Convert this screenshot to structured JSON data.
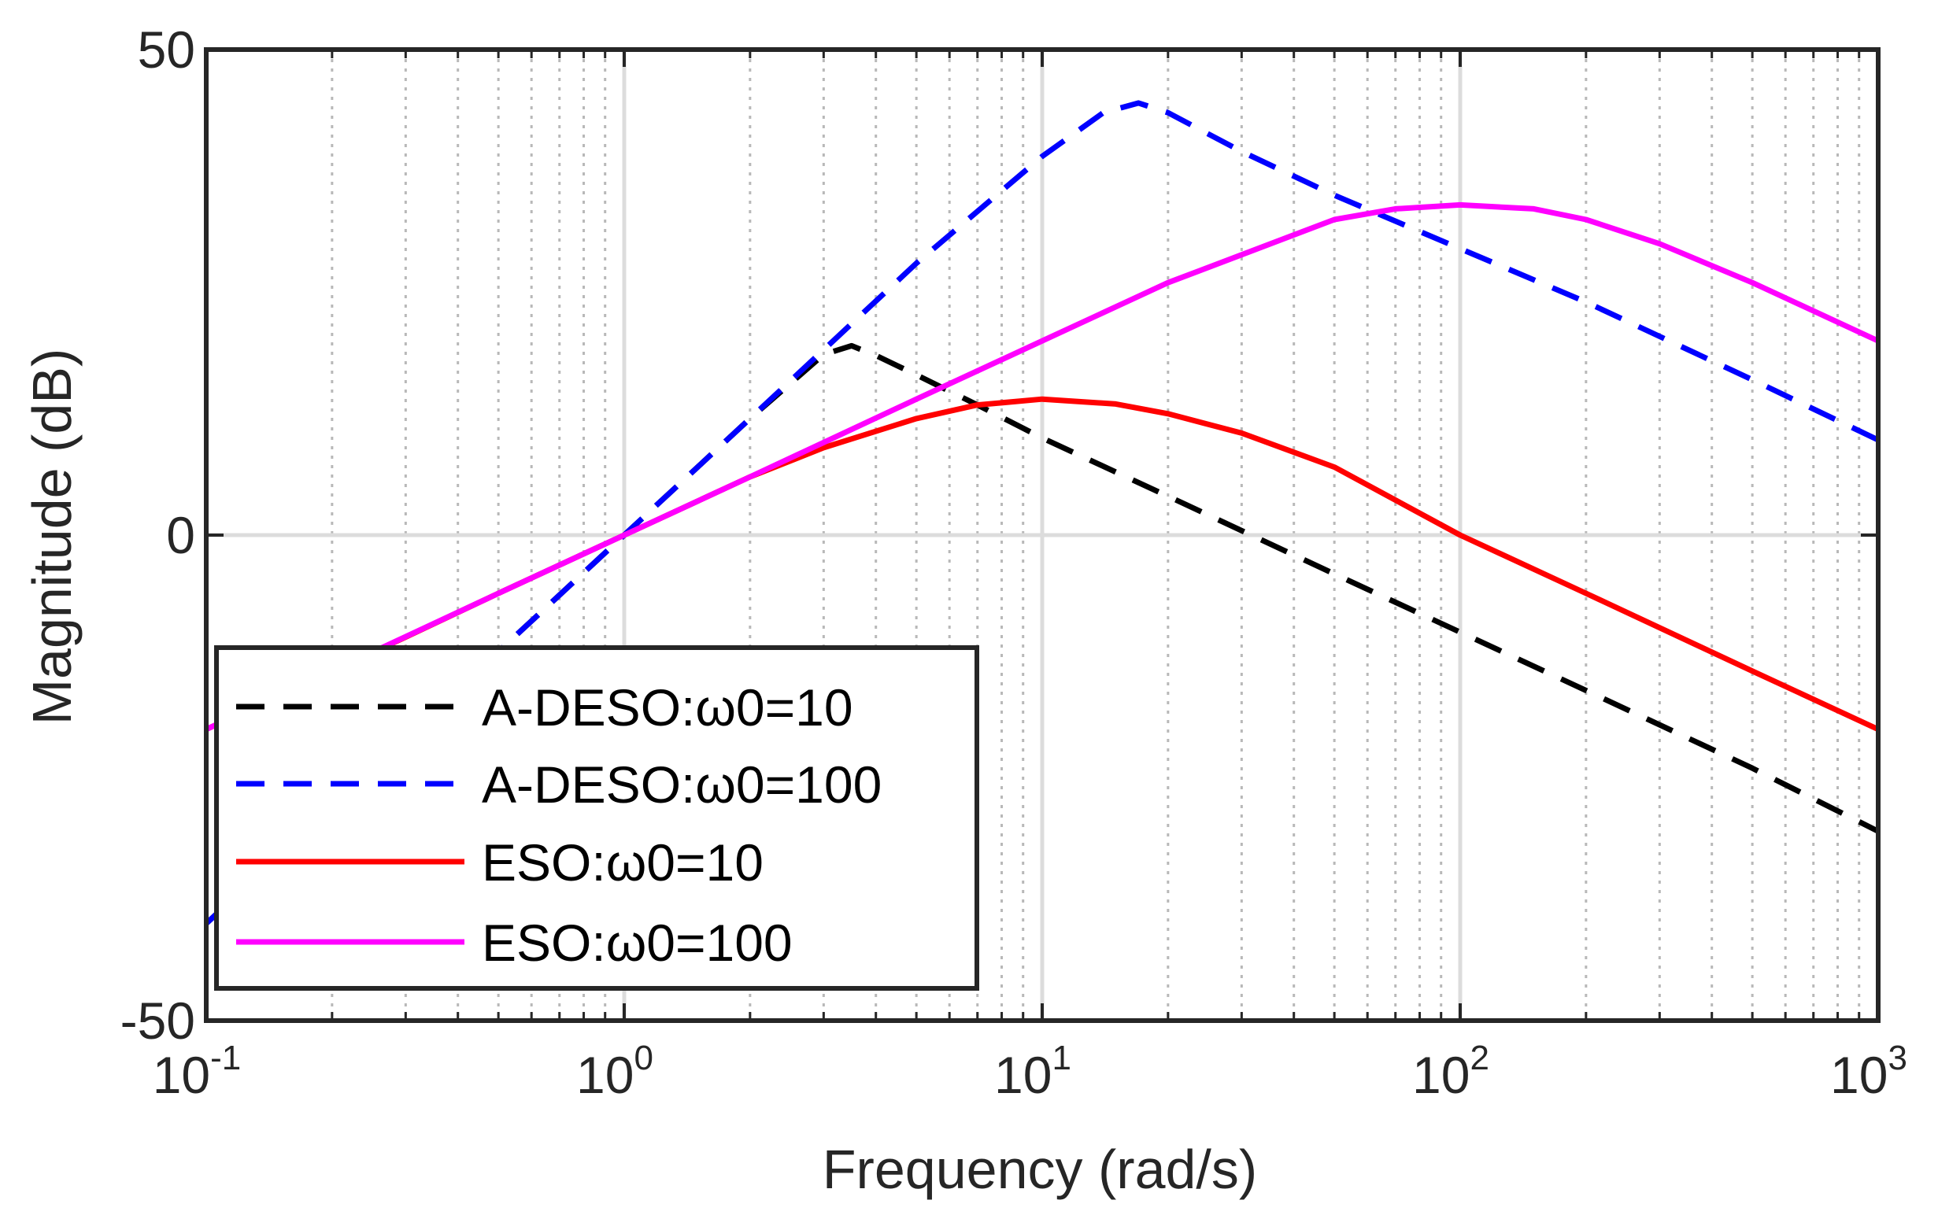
{
  "chart_data": {
    "type": "line",
    "title": "",
    "xlabel": "Frequency (rad/s)",
    "ylabel": "Magnitude (dB)",
    "xscale": "log",
    "xlim": [
      0.1,
      1000
    ],
    "ylim": [
      -50,
      50
    ],
    "grid": true,
    "minor_grid": true,
    "legend_position": "bottom-left",
    "xticks": [
      {
        "value": 0.1,
        "base": "10",
        "exp": "-1"
      },
      {
        "value": 1,
        "base": "10",
        "exp": "0"
      },
      {
        "value": 10,
        "base": "10",
        "exp": "1"
      },
      {
        "value": 100,
        "base": "10",
        "exp": "2"
      },
      {
        "value": 1000,
        "base": "10",
        "exp": "3"
      }
    ],
    "yticks": [
      {
        "value": -50,
        "label": "-50"
      },
      {
        "value": 0,
        "label": "0"
      },
      {
        "value": 50,
        "label": "50"
      }
    ],
    "series": [
      {
        "name": "A-DESO:ω0=10",
        "color": "#000000",
        "dash": "dashed",
        "x": [
          0.1,
          0.2,
          0.5,
          1,
          2,
          3,
          3.5,
          4,
          5,
          7,
          10,
          20,
          50,
          100,
          200,
          500,
          1000
        ],
        "y": [
          -40,
          -28,
          -12,
          0,
          12,
          18.6,
          19.5,
          18.5,
          16.5,
          13.4,
          10,
          4,
          -4,
          -10,
          -16,
          -24,
          -30.5
        ]
      },
      {
        "name": "A-DESO:ω0=100",
        "color": "#0000ff",
        "dash": "dashed",
        "x": [
          0.1,
          0.2,
          0.5,
          1,
          2,
          5,
          10,
          14,
          17,
          20,
          30,
          50,
          100,
          200,
          500,
          1000
        ],
        "y": [
          -40,
          -28,
          -12,
          0,
          12,
          28,
          39,
          43.5,
          44.5,
          43.5,
          39.5,
          35,
          29.5,
          24,
          16,
          9.8
        ]
      },
      {
        "name": "ESO:ω0=10",
        "color": "#ff0000",
        "dash": "solid",
        "x": [
          0.1,
          0.2,
          0.3,
          0.5,
          1,
          2,
          3,
          5,
          7,
          10,
          15,
          20,
          30,
          50,
          100,
          200,
          500,
          1000
        ],
        "y": [
          -20,
          -14,
          -10.5,
          -6,
          0,
          6,
          9,
          12,
          13.4,
          14,
          13.5,
          12.5,
          10.5,
          7,
          0,
          -6,
          -14,
          -20
        ]
      },
      {
        "name": "ESO:ω0=100",
        "color": "#ff00ff",
        "dash": "solid",
        "x": [
          0.1,
          0.2,
          0.5,
          1,
          2,
          5,
          10,
          20,
          50,
          70,
          100,
          150,
          200,
          300,
          500,
          1000
        ],
        "y": [
          -20,
          -14,
          -6,
          0,
          6,
          14,
          20,
          26,
          32.5,
          33.6,
          34,
          33.6,
          32.5,
          30,
          26,
          20
        ]
      }
    ]
  }
}
